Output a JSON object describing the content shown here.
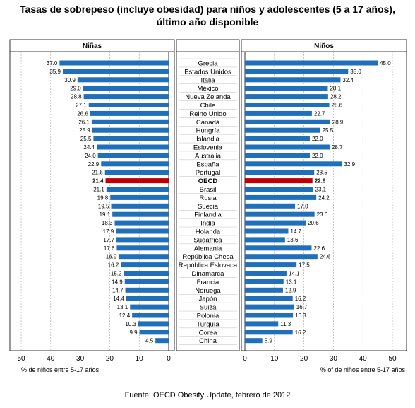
{
  "title": {
    "line1": "Tasas de sobrepeso (incluye obesidad) para niños y adolescentes (5 a 17 años),",
    "line2": "último año disponible"
  },
  "source": "Fuente: OECD Obesity Update, febrero de 2012",
  "colors": {
    "bar": "#1f6fba",
    "highlight": "#c00000"
  },
  "chart_data": {
    "type": "bar",
    "orientation": "horizontal",
    "categories": [
      "Grecia",
      "Estados Unidos",
      "Italia",
      "México",
      "Nueva Zelanda",
      "Chile",
      "Reino Unido",
      "Canadá",
      "Hungría",
      "Islandia",
      "Eslovenia",
      "Australia",
      "España",
      "Portugal",
      "OECD",
      "Brasil",
      "Rusia",
      "Suecia",
      "Finlandia",
      "India",
      "Holanda",
      "Sudáfrica",
      "Alemania",
      "República Checa",
      "República Eslovaca",
      "Dinamarca",
      "Francia",
      "Noruega",
      "Japón",
      "Suiza",
      "Polonia",
      "Turquía",
      "Corea",
      "China"
    ],
    "highlight_category": "OECD",
    "series": [
      {
        "name": "Niñas",
        "axis_label": "% de niños entre 5-17 años",
        "values": [
          37.0,
          35.9,
          30.9,
          29.0,
          28.8,
          27.1,
          26.6,
          26.1,
          25.9,
          25.5,
          24.4,
          24.0,
          22.9,
          21.6,
          21.4,
          21.1,
          19.8,
          19.5,
          19.1,
          18.3,
          17.9,
          17.7,
          17.6,
          16.9,
          16.2,
          15.2,
          14.9,
          14.7,
          14.4,
          13.1,
          12.4,
          10.3,
          9.9,
          4.5
        ]
      },
      {
        "name": "Niños",
        "axis_label": "% of de niños entre 5-17 años",
        "values": [
          45.0,
          35.0,
          32.4,
          28.1,
          28.2,
          28.6,
          22.7,
          28.9,
          25.5,
          22.0,
          28.7,
          22.0,
          32.9,
          23.5,
          22.9,
          23.1,
          24.2,
          17.0,
          23.6,
          20.6,
          14.7,
          13.6,
          22.6,
          24.6,
          17.5,
          14.1,
          13.1,
          12.9,
          16.2,
          16.7,
          16.3,
          11.3,
          16.2,
          5.9
        ]
      }
    ],
    "xlim": [
      0,
      50
    ],
    "ticks": [
      0,
      10,
      20,
      30,
      40,
      50
    ],
    "grid": true
  }
}
